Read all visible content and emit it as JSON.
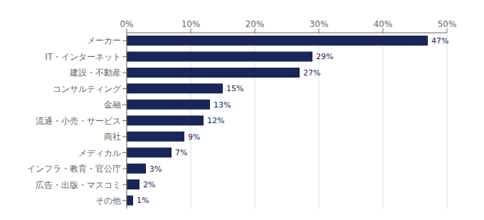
{
  "chart_data": {
    "type": "bar",
    "orientation": "horizontal",
    "categories": [
      "メーカー",
      "IT・インターネット",
      "建設・不動産",
      "コンサルティング",
      "金融",
      "流通・小売・サービス",
      "商社",
      "メディカル",
      "インフラ・教育・官公庁",
      "広告・出版・マスコミ",
      "その他"
    ],
    "values": [
      47,
      29,
      27,
      15,
      13,
      12,
      9,
      7,
      3,
      2,
      1
    ],
    "value_labels": [
      "47%",
      "29%",
      "27%",
      "15%",
      "13%",
      "12%",
      "9%",
      "7%",
      "3%",
      "2%",
      "1%"
    ],
    "data_labels": true,
    "color": "#1a2558",
    "xlim": [
      0,
      50
    ],
    "xticks": [
      {
        "value": 0,
        "label": "0%"
      },
      {
        "value": 10,
        "label": "10%"
      },
      {
        "value": 20,
        "label": "20%"
      },
      {
        "value": 30,
        "label": "30%"
      },
      {
        "value": 40,
        "label": "40%"
      },
      {
        "value": 50,
        "label": "50%"
      }
    ],
    "grid": true
  }
}
